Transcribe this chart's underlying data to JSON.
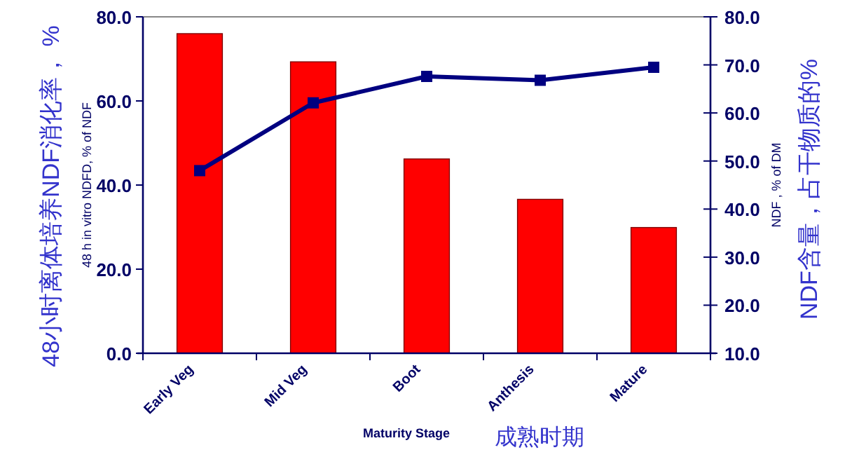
{
  "chart_data": {
    "type": "bar",
    "categories": [
      "Early Veg",
      "Mid Veg",
      "Boot",
      "Anthesis",
      "Mature"
    ],
    "series": [
      {
        "color": "#ff0000",
        "values": [
          76.0,
          69.3,
          46.2,
          36.6,
          29.9
        ]
      },
      {
        "type": "line",
        "axis": "y2",
        "color": "#000080",
        "marker": "square",
        "values": [
          48.0,
          62.1,
          67.6,
          66.8,
          69.5
        ]
      }
    ],
    "ylim": [
      0,
      80
    ],
    "yticks": [
      {
        "value": 0,
        "label": "0.0"
      },
      {
        "value": 20,
        "label": "20.0"
      },
      {
        "value": 40,
        "label": "40.0"
      },
      {
        "value": 60,
        "label": "60.0"
      },
      {
        "value": 80,
        "label": "80.0"
      }
    ],
    "y2lim": [
      10,
      80
    ],
    "y2ticks": [
      {
        "value": 10,
        "label": "10.0"
      },
      {
        "value": 20,
        "label": "20.0"
      },
      {
        "value": 30,
        "label": "30.0"
      },
      {
        "value": 40,
        "label": "40.0"
      },
      {
        "value": 50,
        "label": "50.0"
      },
      {
        "value": 60,
        "label": "60.0"
      },
      {
        "value": 70,
        "label": "70.0"
      },
      {
        "value": 80,
        "label": "80.0"
      }
    ],
    "xlabel": "Maturity Stage",
    "ylabel": "48 h in vitro NDFD, % of NDF",
    "y2label": "NDF , % of DM",
    "annotations": [
      "48小时离体培养NDF消化率， %",
      "NDF含量，占干物质的%",
      "成熟时期"
    ]
  }
}
